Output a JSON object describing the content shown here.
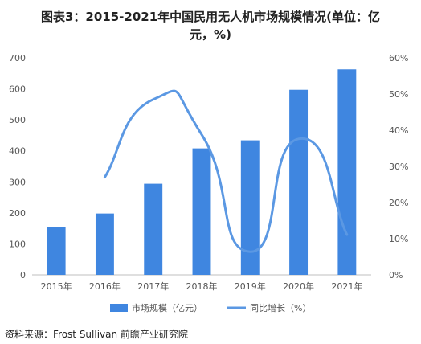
{
  "title_line1": "图表3：2015-2021年中国民用无人机市场规模情况(单位：亿",
  "title_line2": "元，%)",
  "source": "资料来源：Frost Sullivan 前瞻产业研究院",
  "chart_data": {
    "type": "bar",
    "categories": [
      "2015年",
      "2016年",
      "2017年",
      "2018年",
      "2019年",
      "2020年",
      "2021年"
    ],
    "series": [
      {
        "name": "市场规模（亿元）",
        "type": "bar",
        "axis": "left",
        "values": [
          155,
          198,
          294,
          408,
          434,
          597,
          663
        ]
      },
      {
        "name": "同比增长（%）",
        "type": "line",
        "axis": "right",
        "smooth": true,
        "values": [
          null,
          27.0,
          48.5,
          38.8,
          6.4,
          37.6,
          11.1
        ]
      }
    ],
    "y_left": {
      "min": 0,
      "max": 700,
      "ticks": [
        0,
        100,
        200,
        300,
        400,
        500,
        600,
        700
      ]
    },
    "y_right": {
      "min": 0,
      "max": 60,
      "ticks": [
        "0%",
        "10%",
        "20%",
        "30%",
        "40%",
        "50%",
        "60%"
      ]
    },
    "grid": false,
    "legend_position": "bottom",
    "colors": {
      "bar": "#3f86e0",
      "line": "#5b98e3",
      "axis": "#999999",
      "text": "#555555"
    }
  }
}
